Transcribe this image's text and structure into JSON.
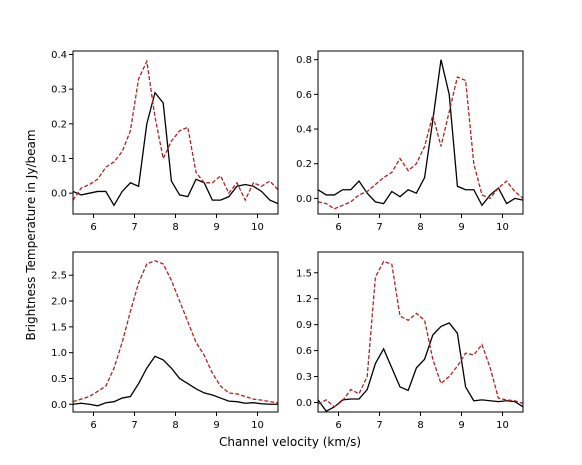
{
  "figure": {
    "xlabel": "Channel velocity (km/s)",
    "ylabel": "Brightness Temperature in Jy/beam"
  },
  "chart_data": [
    {
      "type": "line",
      "xlim": [
        5.5,
        10.5
      ],
      "ylim": [
        -0.06,
        0.41
      ],
      "xticks": [
        6,
        7,
        8,
        9,
        10
      ],
      "yticks": [
        0.0,
        0.1,
        0.2,
        0.3,
        0.4
      ],
      "ytick_labels": [
        "0.0",
        "0.1",
        "0.2",
        "0.3",
        "0.4"
      ],
      "series": [
        {
          "color": "#000000",
          "style": "solid",
          "x": [
            5.5,
            5.7,
            5.9,
            6.1,
            6.3,
            6.5,
            6.7,
            6.9,
            7.1,
            7.3,
            7.5,
            7.7,
            7.9,
            8.1,
            8.3,
            8.5,
            8.7,
            8.9,
            9.1,
            9.3,
            9.5,
            9.7,
            9.9,
            10.1,
            10.3,
            10.5
          ],
          "y": [
            0.005,
            -0.005,
            0.0,
            0.005,
            0.005,
            -0.035,
            0.005,
            0.03,
            0.02,
            0.2,
            0.29,
            0.26,
            0.035,
            -0.005,
            -0.01,
            0.04,
            0.03,
            -0.02,
            -0.02,
            -0.01,
            0.02,
            0.025,
            0.02,
            0.005,
            -0.02,
            -0.03
          ]
        },
        {
          "color": "#b22222",
          "style": "dashed",
          "x": [
            5.5,
            5.7,
            5.9,
            6.1,
            6.3,
            6.5,
            6.7,
            6.9,
            7.1,
            7.3,
            7.5,
            7.7,
            7.9,
            8.1,
            8.3,
            8.5,
            8.7,
            8.9,
            9.1,
            9.3,
            9.5,
            9.7,
            9.9,
            10.1,
            10.3,
            10.5
          ],
          "y": [
            -0.02,
            0.015,
            0.025,
            0.04,
            0.075,
            0.09,
            0.12,
            0.18,
            0.33,
            0.38,
            0.22,
            0.1,
            0.15,
            0.18,
            0.19,
            0.06,
            0.03,
            0.03,
            0.05,
            0.0,
            0.03,
            -0.02,
            0.03,
            0.02,
            0.035,
            0.01
          ]
        }
      ]
    },
    {
      "type": "line",
      "xlim": [
        5.5,
        10.5
      ],
      "ylim": [
        -0.09,
        0.85
      ],
      "xticks": [
        6,
        7,
        8,
        9,
        10
      ],
      "yticks": [
        0.0,
        0.2,
        0.4,
        0.6,
        0.8
      ],
      "ytick_labels": [
        "0.0",
        "0.2",
        "0.4",
        "0.6",
        "0.8"
      ],
      "series": [
        {
          "color": "#000000",
          "style": "solid",
          "x": [
            5.5,
            5.7,
            5.9,
            6.1,
            6.3,
            6.5,
            6.7,
            6.9,
            7.1,
            7.3,
            7.5,
            7.7,
            7.9,
            8.1,
            8.3,
            8.5,
            8.7,
            8.9,
            9.1,
            9.3,
            9.5,
            9.7,
            9.9,
            10.1,
            10.3,
            10.5
          ],
          "y": [
            0.05,
            0.02,
            0.02,
            0.05,
            0.05,
            0.1,
            0.03,
            -0.02,
            -0.03,
            0.04,
            0.01,
            0.05,
            0.03,
            0.12,
            0.45,
            0.8,
            0.6,
            0.07,
            0.05,
            0.05,
            -0.04,
            0.02,
            0.06,
            -0.03,
            0.0,
            -0.01
          ]
        },
        {
          "color": "#b22222",
          "style": "dashed",
          "x": [
            5.5,
            5.7,
            5.9,
            6.1,
            6.3,
            6.5,
            6.7,
            6.9,
            7.1,
            7.3,
            7.5,
            7.7,
            7.9,
            8.1,
            8.3,
            8.5,
            8.7,
            8.9,
            9.1,
            9.3,
            9.5,
            9.7,
            9.9,
            10.1,
            10.3,
            10.5
          ],
          "y": [
            -0.02,
            -0.03,
            -0.06,
            -0.04,
            -0.02,
            0.02,
            0.04,
            0.08,
            0.12,
            0.15,
            0.23,
            0.16,
            0.2,
            0.3,
            0.48,
            0.3,
            0.5,
            0.7,
            0.68,
            0.2,
            0.02,
            0.0,
            0.06,
            0.1,
            0.04,
            0.0
          ]
        }
      ]
    },
    {
      "type": "line",
      "xlim": [
        5.5,
        10.5
      ],
      "ylim": [
        -0.15,
        2.95
      ],
      "xticks": [
        6,
        7,
        8,
        9,
        10
      ],
      "yticks": [
        0.0,
        0.5,
        1.0,
        1.5,
        2.0,
        2.5
      ],
      "ytick_labels": [
        "0.0",
        "0.5",
        "1.0",
        "1.5",
        "2.0",
        "2.5"
      ],
      "series": [
        {
          "color": "#000000",
          "style": "solid",
          "x": [
            5.5,
            5.7,
            5.9,
            6.1,
            6.3,
            6.5,
            6.7,
            6.9,
            7.1,
            7.3,
            7.5,
            7.7,
            7.9,
            8.1,
            8.3,
            8.5,
            8.7,
            8.9,
            9.1,
            9.3,
            9.5,
            9.7,
            9.9,
            10.1,
            10.3,
            10.5
          ],
          "y": [
            0.0,
            0.02,
            0.0,
            -0.03,
            0.03,
            0.05,
            0.12,
            0.15,
            0.4,
            0.7,
            0.93,
            0.86,
            0.7,
            0.5,
            0.4,
            0.3,
            0.22,
            0.18,
            0.12,
            0.06,
            0.05,
            0.02,
            0.03,
            0.01,
            0.0,
            0.0
          ]
        },
        {
          "color": "#b22222",
          "style": "dashed",
          "x": [
            5.5,
            5.7,
            5.9,
            6.1,
            6.3,
            6.5,
            6.7,
            6.9,
            7.1,
            7.3,
            7.5,
            7.7,
            7.9,
            8.1,
            8.3,
            8.5,
            8.7,
            8.9,
            9.1,
            9.3,
            9.5,
            9.7,
            9.9,
            10.1,
            10.3,
            10.5
          ],
          "y": [
            0.05,
            0.1,
            0.15,
            0.25,
            0.35,
            0.7,
            1.2,
            1.8,
            2.35,
            2.72,
            2.78,
            2.72,
            2.4,
            2.0,
            1.6,
            1.2,
            0.95,
            0.6,
            0.35,
            0.22,
            0.2,
            0.15,
            0.1,
            0.08,
            0.05,
            0.03
          ]
        }
      ]
    },
    {
      "type": "line",
      "xlim": [
        5.5,
        10.5
      ],
      "ylim": [
        -0.11,
        1.74
      ],
      "xticks": [
        6,
        7,
        8,
        9,
        10
      ],
      "yticks": [
        0.0,
        0.3,
        0.6,
        0.9,
        1.2,
        1.5
      ],
      "ytick_labels": [
        "0.0",
        "0.3",
        "0.6",
        "0.9",
        "1.2",
        "1.5"
      ],
      "series": [
        {
          "color": "#000000",
          "style": "solid",
          "x": [
            5.5,
            5.7,
            5.9,
            6.1,
            6.3,
            6.5,
            6.7,
            6.9,
            7.1,
            7.3,
            7.5,
            7.7,
            7.9,
            8.1,
            8.3,
            8.5,
            8.7,
            8.9,
            9.1,
            9.3,
            9.5,
            9.7,
            9.9,
            10.1,
            10.3,
            10.5
          ],
          "y": [
            0.03,
            -0.1,
            -0.05,
            0.03,
            0.04,
            0.04,
            0.15,
            0.45,
            0.62,
            0.4,
            0.18,
            0.14,
            0.4,
            0.5,
            0.78,
            0.88,
            0.92,
            0.8,
            0.18,
            0.02,
            0.03,
            0.02,
            0.01,
            0.02,
            0.01,
            -0.05
          ]
        },
        {
          "color": "#b22222",
          "style": "dashed",
          "x": [
            5.5,
            5.7,
            5.9,
            6.1,
            6.3,
            6.5,
            6.7,
            6.9,
            7.1,
            7.3,
            7.5,
            7.7,
            7.9,
            8.1,
            8.3,
            8.5,
            8.7,
            8.9,
            9.1,
            9.3,
            9.5,
            9.7,
            9.9,
            10.1,
            10.3,
            10.5
          ],
          "y": [
            -0.02,
            0.03,
            -0.05,
            0.02,
            0.15,
            0.1,
            0.3,
            1.45,
            1.63,
            1.6,
            1.0,
            0.95,
            1.03,
            0.95,
            0.5,
            0.22,
            0.3,
            0.42,
            0.57,
            0.55,
            0.67,
            0.4,
            0.05,
            0.03,
            0.02,
            -0.01
          ]
        }
      ]
    }
  ]
}
